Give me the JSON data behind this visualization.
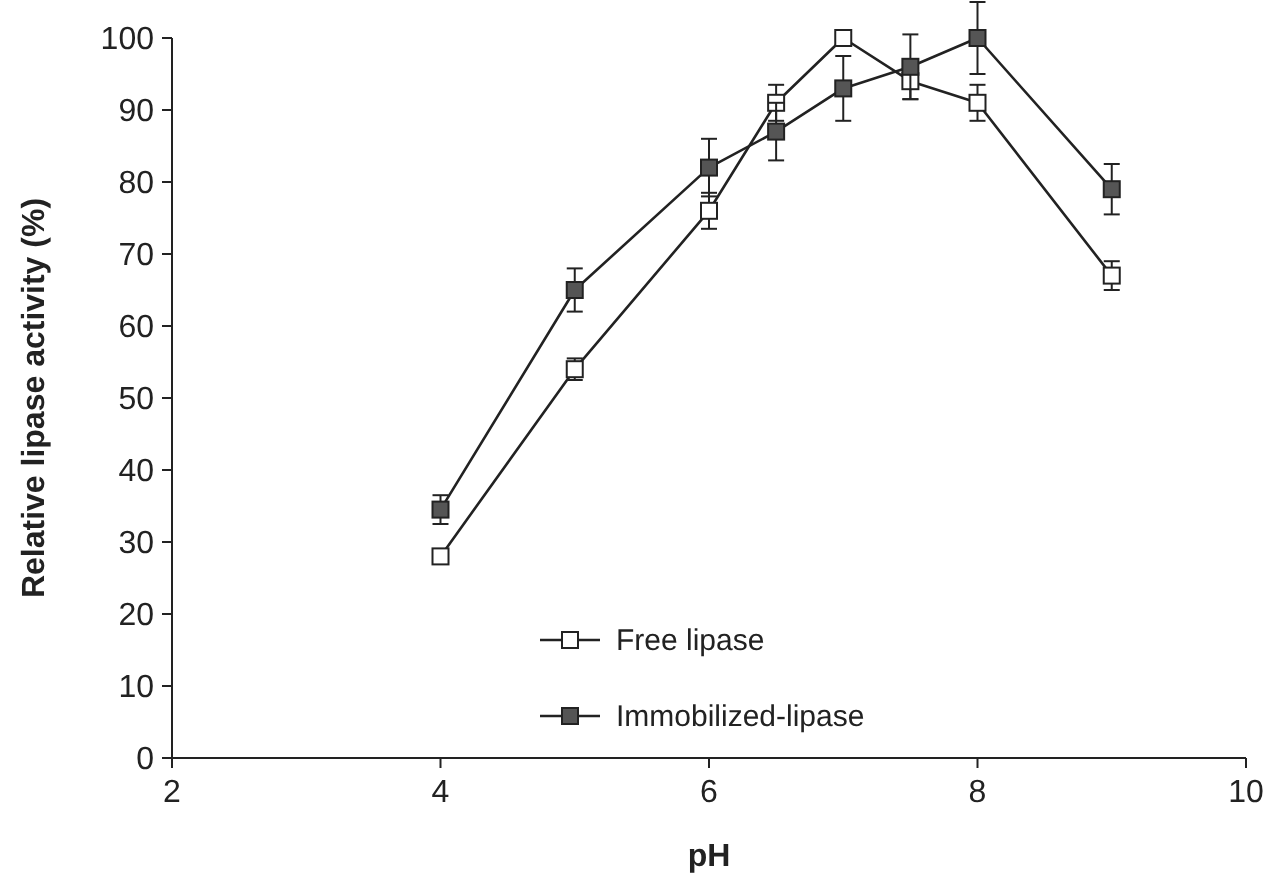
{
  "chart_data": {
    "type": "line",
    "xlabel": "pH",
    "ylabel": "Relative lipase activity (%)",
    "xlim": [
      2,
      10
    ],
    "xticks": [
      2,
      4,
      6,
      8,
      10
    ],
    "ylim": [
      0,
      100
    ],
    "yticks": [
      0,
      10,
      20,
      30,
      40,
      50,
      60,
      70,
      80,
      90,
      100
    ],
    "x": [
      4,
      5,
      6,
      6.5,
      7,
      7.5,
      8,
      9
    ],
    "marker": "square",
    "legend": "bottom",
    "grid": false,
    "series": [
      {
        "name": "Free lipase",
        "color": "#ffffff",
        "values": [
          28,
          54,
          76,
          91,
          100,
          94,
          91,
          67
        ],
        "errors": [
          1,
          1.5,
          2.5,
          2.5,
          null,
          2.5,
          2.5,
          2
        ]
      },
      {
        "name": "Immobilized-lipase",
        "color": "#555555",
        "values": [
          34.5,
          65,
          82,
          87,
          93,
          96,
          100,
          79
        ],
        "errors": [
          2,
          3,
          4,
          4,
          4.5,
          4.5,
          5,
          3.5
        ]
      }
    ]
  }
}
